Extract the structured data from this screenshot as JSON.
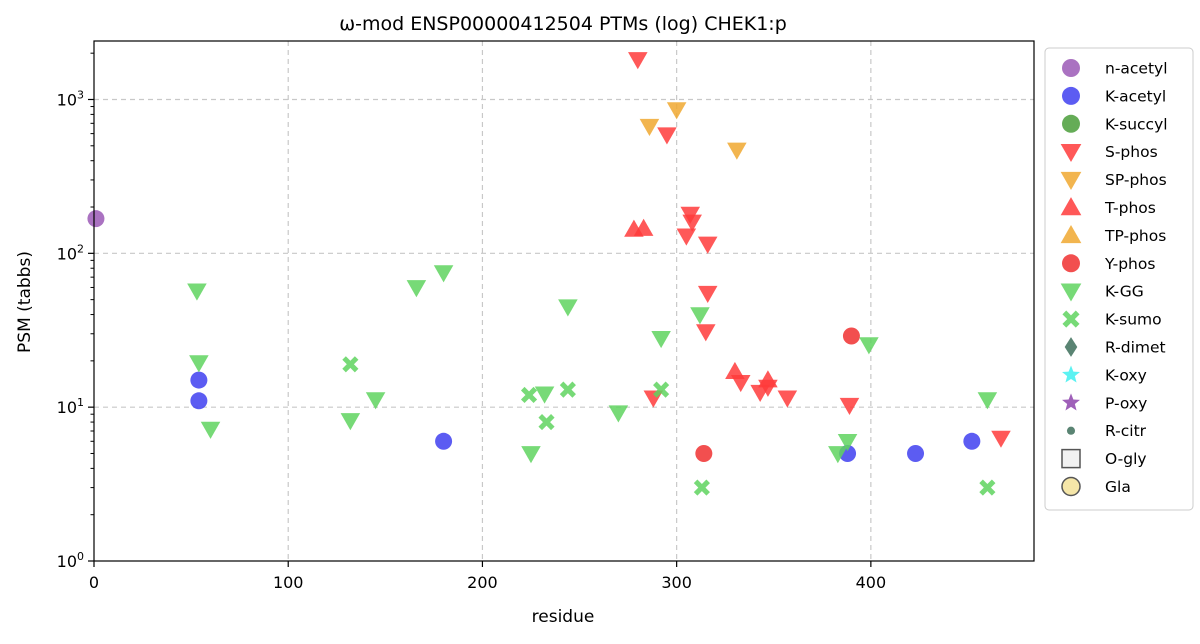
{
  "chart_data": {
    "type": "scatter",
    "title": "ω-mod ENSP00000412504 PTMs (log) CHEK1:p",
    "xlabel": "residue",
    "ylabel": "PSM (tabbs)",
    "xlim": [
      0,
      484
    ],
    "ylim": [
      1,
      2400
    ],
    "yscale": "log",
    "grid": true,
    "legend_position": "outside-right",
    "x_ticks": [
      0,
      100,
      200,
      300,
      400
    ],
    "y_ticks": [
      {
        "value": 1,
        "base": "10",
        "exp": "0"
      },
      {
        "value": 10,
        "base": "10",
        "exp": "1"
      },
      {
        "value": 100,
        "base": "10",
        "exp": "2"
      },
      {
        "value": 1000,
        "base": "10",
        "exp": "3"
      }
    ],
    "series": [
      {
        "name": "n-acetyl",
        "marker": "circle",
        "color": "#9b59b6",
        "points": [
          [
            1,
            168
          ]
        ]
      },
      {
        "name": "K-acetyl",
        "marker": "circle",
        "color": "#4040f0",
        "points": [
          [
            54,
            15
          ],
          [
            54,
            11
          ],
          [
            180,
            6
          ],
          [
            388,
            5
          ],
          [
            423,
            5
          ],
          [
            452,
            6
          ]
        ]
      },
      {
        "name": "K-succyl",
        "marker": "circle",
        "color": "#4a9e3a",
        "points": []
      },
      {
        "name": "S-phos",
        "marker": "triangle-down",
        "color": "#ff3b3b",
        "points": [
          [
            280,
            1820
          ],
          [
            295,
            590
          ],
          [
            307,
            180
          ],
          [
            308,
            160
          ],
          [
            305,
            130
          ],
          [
            316,
            115
          ],
          [
            316,
            55
          ],
          [
            315,
            31
          ],
          [
            288,
            11.5
          ],
          [
            333,
            14.5
          ],
          [
            343,
            12.5
          ],
          [
            347,
            13.5
          ],
          [
            357,
            11.5
          ],
          [
            389,
            10.3
          ],
          [
            467,
            6.3
          ]
        ]
      },
      {
        "name": "SP-phos",
        "marker": "triangle-down",
        "color": "#f0a830",
        "points": [
          [
            286,
            670
          ],
          [
            300,
            860
          ],
          [
            331,
            470
          ]
        ]
      },
      {
        "name": "T-phos",
        "marker": "triangle-up",
        "color": "#ff3b3b",
        "points": [
          [
            278,
            143
          ],
          [
            283,
            145
          ],
          [
            330,
            17
          ],
          [
            347,
            15
          ]
        ]
      },
      {
        "name": "TP-phos",
        "marker": "triangle-up",
        "color": "#f0a830",
        "points": []
      },
      {
        "name": "Y-phos",
        "marker": "circle",
        "color": "#f03030",
        "points": [
          [
            390,
            29
          ],
          [
            314,
            5
          ]
        ]
      },
      {
        "name": "K-GG",
        "marker": "triangle-down",
        "color": "#5fd35f",
        "points": [
          [
            53,
            57
          ],
          [
            54,
            19.5
          ],
          [
            60,
            7.2
          ],
          [
            132,
            8.2
          ],
          [
            145,
            11.2
          ],
          [
            166,
            60
          ],
          [
            180,
            75
          ],
          [
            225,
            5
          ],
          [
            232,
            12.2
          ],
          [
            244,
            45
          ],
          [
            270,
            9.2
          ],
          [
            292,
            28
          ],
          [
            312,
            40
          ],
          [
            383,
            5
          ],
          [
            388,
            6
          ],
          [
            399,
            25.5
          ],
          [
            460,
            11.2
          ]
        ]
      },
      {
        "name": "K-sumo",
        "marker": "x",
        "color": "#5fd35f",
        "points": [
          [
            132,
            19
          ],
          [
            224,
            12
          ],
          [
            233,
            8
          ],
          [
            244,
            13
          ],
          [
            292,
            13
          ],
          [
            313,
            3
          ],
          [
            460,
            3
          ]
        ]
      },
      {
        "name": "R-dimet",
        "marker": "diamond",
        "color": "#3d6e5a",
        "points": []
      },
      {
        "name": "K-oxy",
        "marker": "star",
        "color": "#40f0f0",
        "points": []
      },
      {
        "name": "P-oxy",
        "marker": "star",
        "color": "#8e44ad",
        "points": []
      },
      {
        "name": "R-citr",
        "marker": "small-circle",
        "color": "#3d6e5a",
        "points": []
      },
      {
        "name": "O-gly",
        "marker": "square-open",
        "color": "#555555",
        "points": []
      },
      {
        "name": "Gla",
        "marker": "circle-open",
        "color": "#f5e6a8",
        "points": []
      }
    ]
  }
}
